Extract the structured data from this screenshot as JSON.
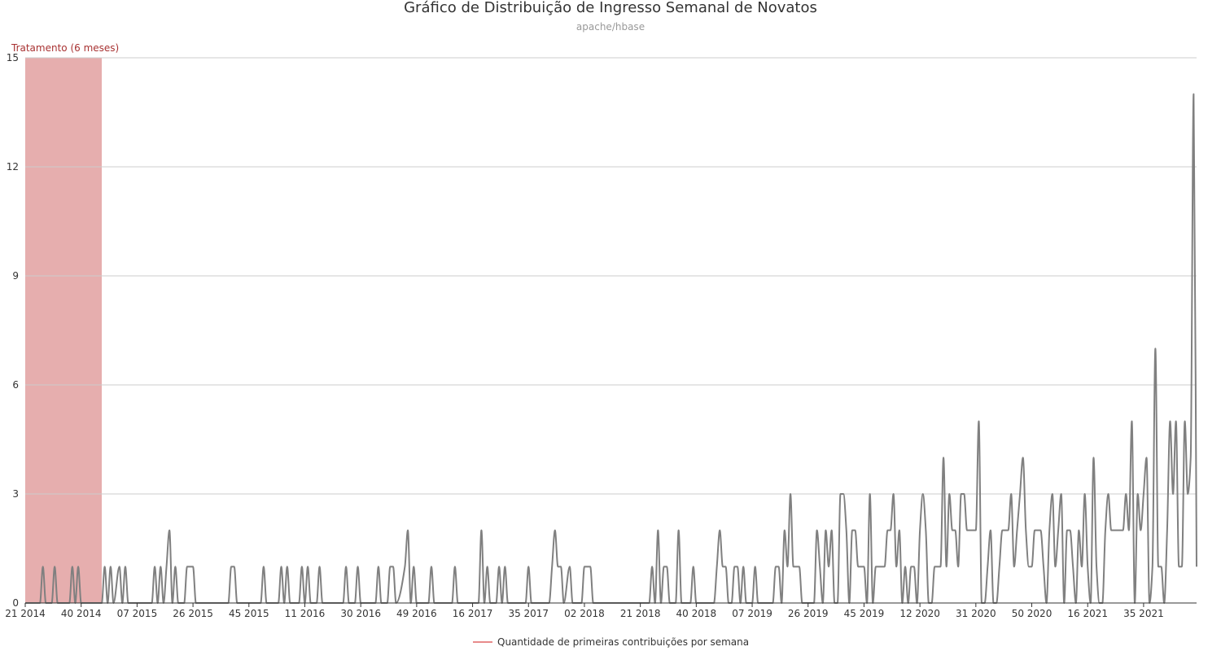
{
  "chart_data": {
    "type": "line",
    "title": "Gráfico de Distribuição de Ingresso Semanal de Novatos",
    "subtitle": "apache/hbase",
    "xlabel": "",
    "ylabel": "",
    "ylim": [
      0,
      15
    ],
    "y_ticks": [
      "0",
      "3",
      "6",
      "9",
      "12",
      "15"
    ],
    "x_ticks": [
      "21 2014",
      "40 2014",
      "07 2015",
      "26 2015",
      "45 2015",
      "11 2016",
      "30 2016",
      "49 2016",
      "16 2017",
      "35 2017",
      "02 2018",
      "21 2018",
      "40 2018",
      "07 2019",
      "26 2019",
      "45 2019",
      "12 2020",
      "31 2020",
      "50 2020",
      "16 2021",
      "35 2021"
    ],
    "grid": true,
    "legend_position": "bottom",
    "colors": {
      "line": "#808080",
      "band": "#e6aeae",
      "band_label": "#a83232",
      "legend_marker": "#e88b8b"
    },
    "band": {
      "label": "Tratamento (6 meses)",
      "x_start": 0,
      "x_end": 26
    },
    "series": [
      {
        "name": "Quantidade de primeiras contribuições por semana",
        "points": [
          [
            0,
            0
          ],
          [
            5,
            0
          ],
          [
            6,
            1
          ],
          [
            7,
            0
          ],
          [
            9,
            0
          ],
          [
            10,
            1
          ],
          [
            11,
            0
          ],
          [
            15,
            0
          ],
          [
            16,
            1
          ],
          [
            17,
            0
          ],
          [
            18,
            1
          ],
          [
            19,
            0
          ],
          [
            26,
            0
          ],
          [
            27,
            1
          ],
          [
            28,
            0
          ],
          [
            29,
            1
          ],
          [
            30,
            0
          ],
          [
            32,
            1
          ],
          [
            33,
            0
          ],
          [
            34,
            1
          ],
          [
            35,
            0
          ],
          [
            43,
            0
          ],
          [
            44,
            1
          ],
          [
            45,
            0
          ],
          [
            46,
            1
          ],
          [
            47,
            0
          ],
          [
            48,
            1
          ],
          [
            49,
            2
          ],
          [
            50,
            0
          ],
          [
            51,
            1
          ],
          [
            52,
            0
          ],
          [
            54,
            0
          ],
          [
            55,
            1
          ],
          [
            57,
            1
          ],
          [
            58,
            0
          ],
          [
            69,
            0
          ],
          [
            70,
            1
          ],
          [
            71,
            1
          ],
          [
            72,
            0
          ],
          [
            80,
            0
          ],
          [
            81,
            1
          ],
          [
            82,
            0
          ],
          [
            86,
            0
          ],
          [
            87,
            1
          ],
          [
            88,
            0
          ],
          [
            89,
            1
          ],
          [
            90,
            0
          ],
          [
            93,
            0
          ],
          [
            94,
            1
          ],
          [
            95,
            0
          ],
          [
            96,
            1
          ],
          [
            97,
            0
          ],
          [
            99,
            0
          ],
          [
            100,
            1
          ],
          [
            101,
            0
          ],
          [
            108,
            0
          ],
          [
            109,
            1
          ],
          [
            110,
            0
          ],
          [
            112,
            0
          ],
          [
            113,
            1
          ],
          [
            114,
            0
          ],
          [
            119,
            0
          ],
          [
            120,
            1
          ],
          [
            121,
            0
          ],
          [
            123,
            0
          ],
          [
            124,
            1
          ],
          [
            125,
            1
          ],
          [
            126,
            0
          ],
          [
            129,
            1
          ],
          [
            130,
            2
          ],
          [
            131,
            0
          ],
          [
            132,
            1
          ],
          [
            133,
            0
          ],
          [
            137,
            0
          ],
          [
            138,
            1
          ],
          [
            139,
            0
          ],
          [
            145,
            0
          ],
          [
            146,
            1
          ],
          [
            147,
            0
          ],
          [
            154,
            0
          ],
          [
            155,
            2
          ],
          [
            156,
            0
          ],
          [
            157,
            1
          ],
          [
            158,
            0
          ],
          [
            160,
            0
          ],
          [
            161,
            1
          ],
          [
            162,
            0
          ],
          [
            163,
            1
          ],
          [
            164,
            0
          ],
          [
            170,
            0
          ],
          [
            171,
            1
          ],
          [
            172,
            0
          ],
          [
            178,
            0
          ],
          [
            179,
            1
          ],
          [
            180,
            2
          ],
          [
            181,
            1
          ],
          [
            182,
            1
          ],
          [
            183,
            0
          ],
          [
            185,
            1
          ],
          [
            186,
            0
          ],
          [
            189,
            0
          ],
          [
            190,
            1
          ],
          [
            191,
            1
          ],
          [
            192,
            1
          ],
          [
            193,
            0
          ],
          [
            212,
            0
          ],
          [
            213,
            1
          ],
          [
            214,
            0
          ],
          [
            215,
            2
          ],
          [
            216,
            0
          ],
          [
            217,
            1
          ],
          [
            218,
            1
          ],
          [
            219,
            0
          ],
          [
            221,
            0
          ],
          [
            222,
            2
          ],
          [
            223,
            0
          ],
          [
            226,
            0
          ],
          [
            227,
            1
          ],
          [
            228,
            0
          ],
          [
            234,
            0
          ],
          [
            235,
            1
          ],
          [
            236,
            2
          ],
          [
            237,
            1
          ],
          [
            238,
            1
          ],
          [
            239,
            0
          ],
          [
            240,
            0
          ],
          [
            241,
            1
          ],
          [
            242,
            1
          ],
          [
            243,
            0
          ],
          [
            244,
            1
          ],
          [
            245,
            0
          ],
          [
            247,
            0
          ],
          [
            248,
            1
          ],
          [
            249,
            0
          ],
          [
            254,
            0
          ],
          [
            255,
            1
          ],
          [
            256,
            1
          ],
          [
            257,
            0
          ],
          [
            258,
            2
          ],
          [
            259,
            1
          ],
          [
            260,
            3
          ],
          [
            261,
            1
          ],
          [
            262,
            1
          ],
          [
            263,
            1
          ],
          [
            264,
            0
          ],
          [
            268,
            0
          ],
          [
            269,
            2
          ],
          [
            270,
            1
          ],
          [
            271,
            0
          ],
          [
            272,
            2
          ],
          [
            273,
            1
          ],
          [
            274,
            2
          ],
          [
            275,
            0
          ],
          [
            276,
            0
          ],
          [
            277,
            3
          ],
          [
            278,
            3
          ],
          [
            279,
            2
          ],
          [
            280,
            0
          ],
          [
            281,
            2
          ],
          [
            282,
            2
          ],
          [
            283,
            1
          ],
          [
            284,
            1
          ],
          [
            285,
            1
          ],
          [
            286,
            0
          ],
          [
            287,
            3
          ],
          [
            288,
            0
          ],
          [
            289,
            1
          ],
          [
            290,
            1
          ],
          [
            291,
            1
          ],
          [
            292,
            1
          ],
          [
            293,
            2
          ],
          [
            294,
            2
          ],
          [
            295,
            3
          ],
          [
            296,
            1
          ],
          [
            297,
            2
          ],
          [
            298,
            0
          ],
          [
            299,
            1
          ],
          [
            300,
            0
          ],
          [
            301,
            1
          ],
          [
            302,
            1
          ],
          [
            303,
            0
          ],
          [
            304,
            2
          ],
          [
            305,
            3
          ],
          [
            306,
            2
          ],
          [
            307,
            0
          ],
          [
            308,
            0
          ],
          [
            309,
            1
          ],
          [
            310,
            1
          ],
          [
            311,
            1
          ],
          [
            312,
            4
          ],
          [
            313,
            1
          ],
          [
            314,
            3
          ],
          [
            315,
            2
          ],
          [
            316,
            2
          ],
          [
            317,
            1
          ],
          [
            318,
            3
          ],
          [
            319,
            3
          ],
          [
            320,
            2
          ],
          [
            321,
            2
          ],
          [
            322,
            2
          ],
          [
            323,
            2
          ],
          [
            324,
            5
          ],
          [
            325,
            0
          ],
          [
            326,
            0
          ],
          [
            327,
            1
          ],
          [
            328,
            2
          ],
          [
            329,
            0
          ],
          [
            330,
            0
          ],
          [
            331,
            1
          ],
          [
            332,
            2
          ],
          [
            333,
            2
          ],
          [
            334,
            2
          ],
          [
            335,
            3
          ],
          [
            336,
            1
          ],
          [
            337,
            2
          ],
          [
            338,
            3
          ],
          [
            339,
            4
          ],
          [
            340,
            2
          ],
          [
            341,
            1
          ],
          [
            342,
            1
          ],
          [
            343,
            2
          ],
          [
            344,
            2
          ],
          [
            345,
            2
          ],
          [
            346,
            1
          ],
          [
            347,
            0
          ],
          [
            348,
            2
          ],
          [
            349,
            3
          ],
          [
            350,
            1
          ],
          [
            351,
            2
          ],
          [
            352,
            3
          ],
          [
            353,
            0
          ],
          [
            354,
            2
          ],
          [
            355,
            2
          ],
          [
            356,
            1
          ],
          [
            357,
            0
          ],
          [
            358,
            2
          ],
          [
            359,
            1
          ],
          [
            360,
            3
          ],
          [
            361,
            1
          ],
          [
            362,
            0
          ],
          [
            363,
            4
          ],
          [
            364,
            1
          ],
          [
            365,
            0
          ],
          [
            366,
            0
          ],
          [
            367,
            2
          ],
          [
            368,
            3
          ],
          [
            369,
            2
          ],
          [
            370,
            2
          ],
          [
            371,
            2
          ],
          [
            372,
            2
          ],
          [
            373,
            2
          ],
          [
            374,
            3
          ],
          [
            375,
            2
          ],
          [
            376,
            5
          ],
          [
            377,
            0
          ],
          [
            378,
            3
          ],
          [
            379,
            2
          ],
          [
            380,
            3
          ],
          [
            381,
            4
          ],
          [
            382,
            0
          ],
          [
            383,
            1
          ],
          [
            384,
            7
          ],
          [
            385,
            1
          ],
          [
            386,
            1
          ],
          [
            387,
            0
          ],
          [
            388,
            2
          ],
          [
            389,
            5
          ],
          [
            390,
            3
          ],
          [
            391,
            5
          ],
          [
            392,
            1
          ],
          [
            393,
            1
          ],
          [
            394,
            5
          ],
          [
            395,
            3
          ],
          [
            396,
            4
          ],
          [
            397,
            14
          ],
          [
            398,
            1
          ]
        ]
      }
    ]
  }
}
